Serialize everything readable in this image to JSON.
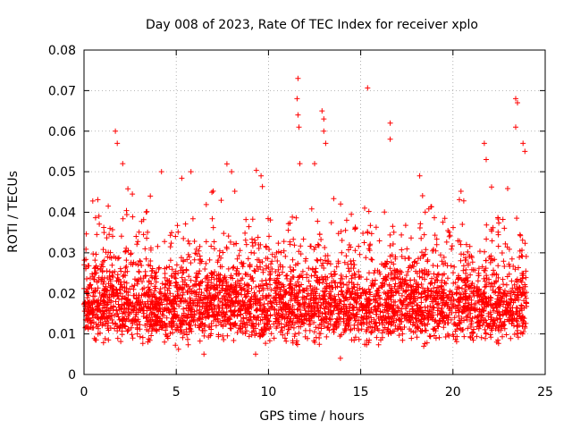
{
  "chart_data": {
    "type": "scatter",
    "title": "Day 008 of 2023, Rate Of TEC Index for receiver xplo",
    "xlabel": "GPS time / hours",
    "ylabel": "ROTI / TECUs",
    "xlim": [
      0,
      25
    ],
    "ylim": [
      0,
      0.08
    ],
    "grid": true,
    "marker": "+",
    "color": "#ff0000",
    "x_ticks": [
      0,
      5,
      10,
      15,
      20,
      25
    ],
    "x_tick_labels": [
      "0",
      "5",
      "10",
      "15",
      "20",
      "25"
    ],
    "y_ticks": [
      0,
      0.01,
      0.02,
      0.03,
      0.04,
      0.05,
      0.06,
      0.07,
      0.08
    ],
    "y_tick_labels": [
      "0",
      "0.01",
      "0.02",
      "0.03",
      "0.04",
      "0.05",
      "0.06",
      "0.07",
      "0.08"
    ],
    "series": [
      {
        "name": "ROTI",
        "summary": {
          "x_range_hours": [
            0,
            24
          ],
          "typical_range": [
            0.01,
            0.03
          ],
          "median_approx": 0.017
        },
        "notable_points": [
          {
            "x": 1.7,
            "y": 0.06
          },
          {
            "x": 1.8,
            "y": 0.057
          },
          {
            "x": 2.1,
            "y": 0.052
          },
          {
            "x": 4.2,
            "y": 0.05
          },
          {
            "x": 5.8,
            "y": 0.05
          },
          {
            "x": 8.0,
            "y": 0.05
          },
          {
            "x": 9.6,
            "y": 0.049
          },
          {
            "x": 11.6,
            "y": 0.073
          },
          {
            "x": 11.55,
            "y": 0.068
          },
          {
            "x": 11.6,
            "y": 0.064
          },
          {
            "x": 11.65,
            "y": 0.061
          },
          {
            "x": 11.7,
            "y": 0.052
          },
          {
            "x": 12.9,
            "y": 0.065
          },
          {
            "x": 13.0,
            "y": 0.063
          },
          {
            "x": 13.0,
            "y": 0.06
          },
          {
            "x": 13.1,
            "y": 0.057
          },
          {
            "x": 12.5,
            "y": 0.052
          },
          {
            "x": 16.6,
            "y": 0.062
          },
          {
            "x": 16.6,
            "y": 0.058
          },
          {
            "x": 18.2,
            "y": 0.049
          },
          {
            "x": 21.7,
            "y": 0.057
          },
          {
            "x": 21.8,
            "y": 0.053
          },
          {
            "x": 23.4,
            "y": 0.068
          },
          {
            "x": 23.5,
            "y": 0.067
          },
          {
            "x": 23.4,
            "y": 0.061
          },
          {
            "x": 23.8,
            "y": 0.057
          },
          {
            "x": 23.9,
            "y": 0.055
          },
          {
            "x": 13.9,
            "y": 0.004
          },
          {
            "x": 6.5,
            "y": 0.005
          },
          {
            "x": 9.3,
            "y": 0.005
          }
        ]
      }
    ]
  }
}
